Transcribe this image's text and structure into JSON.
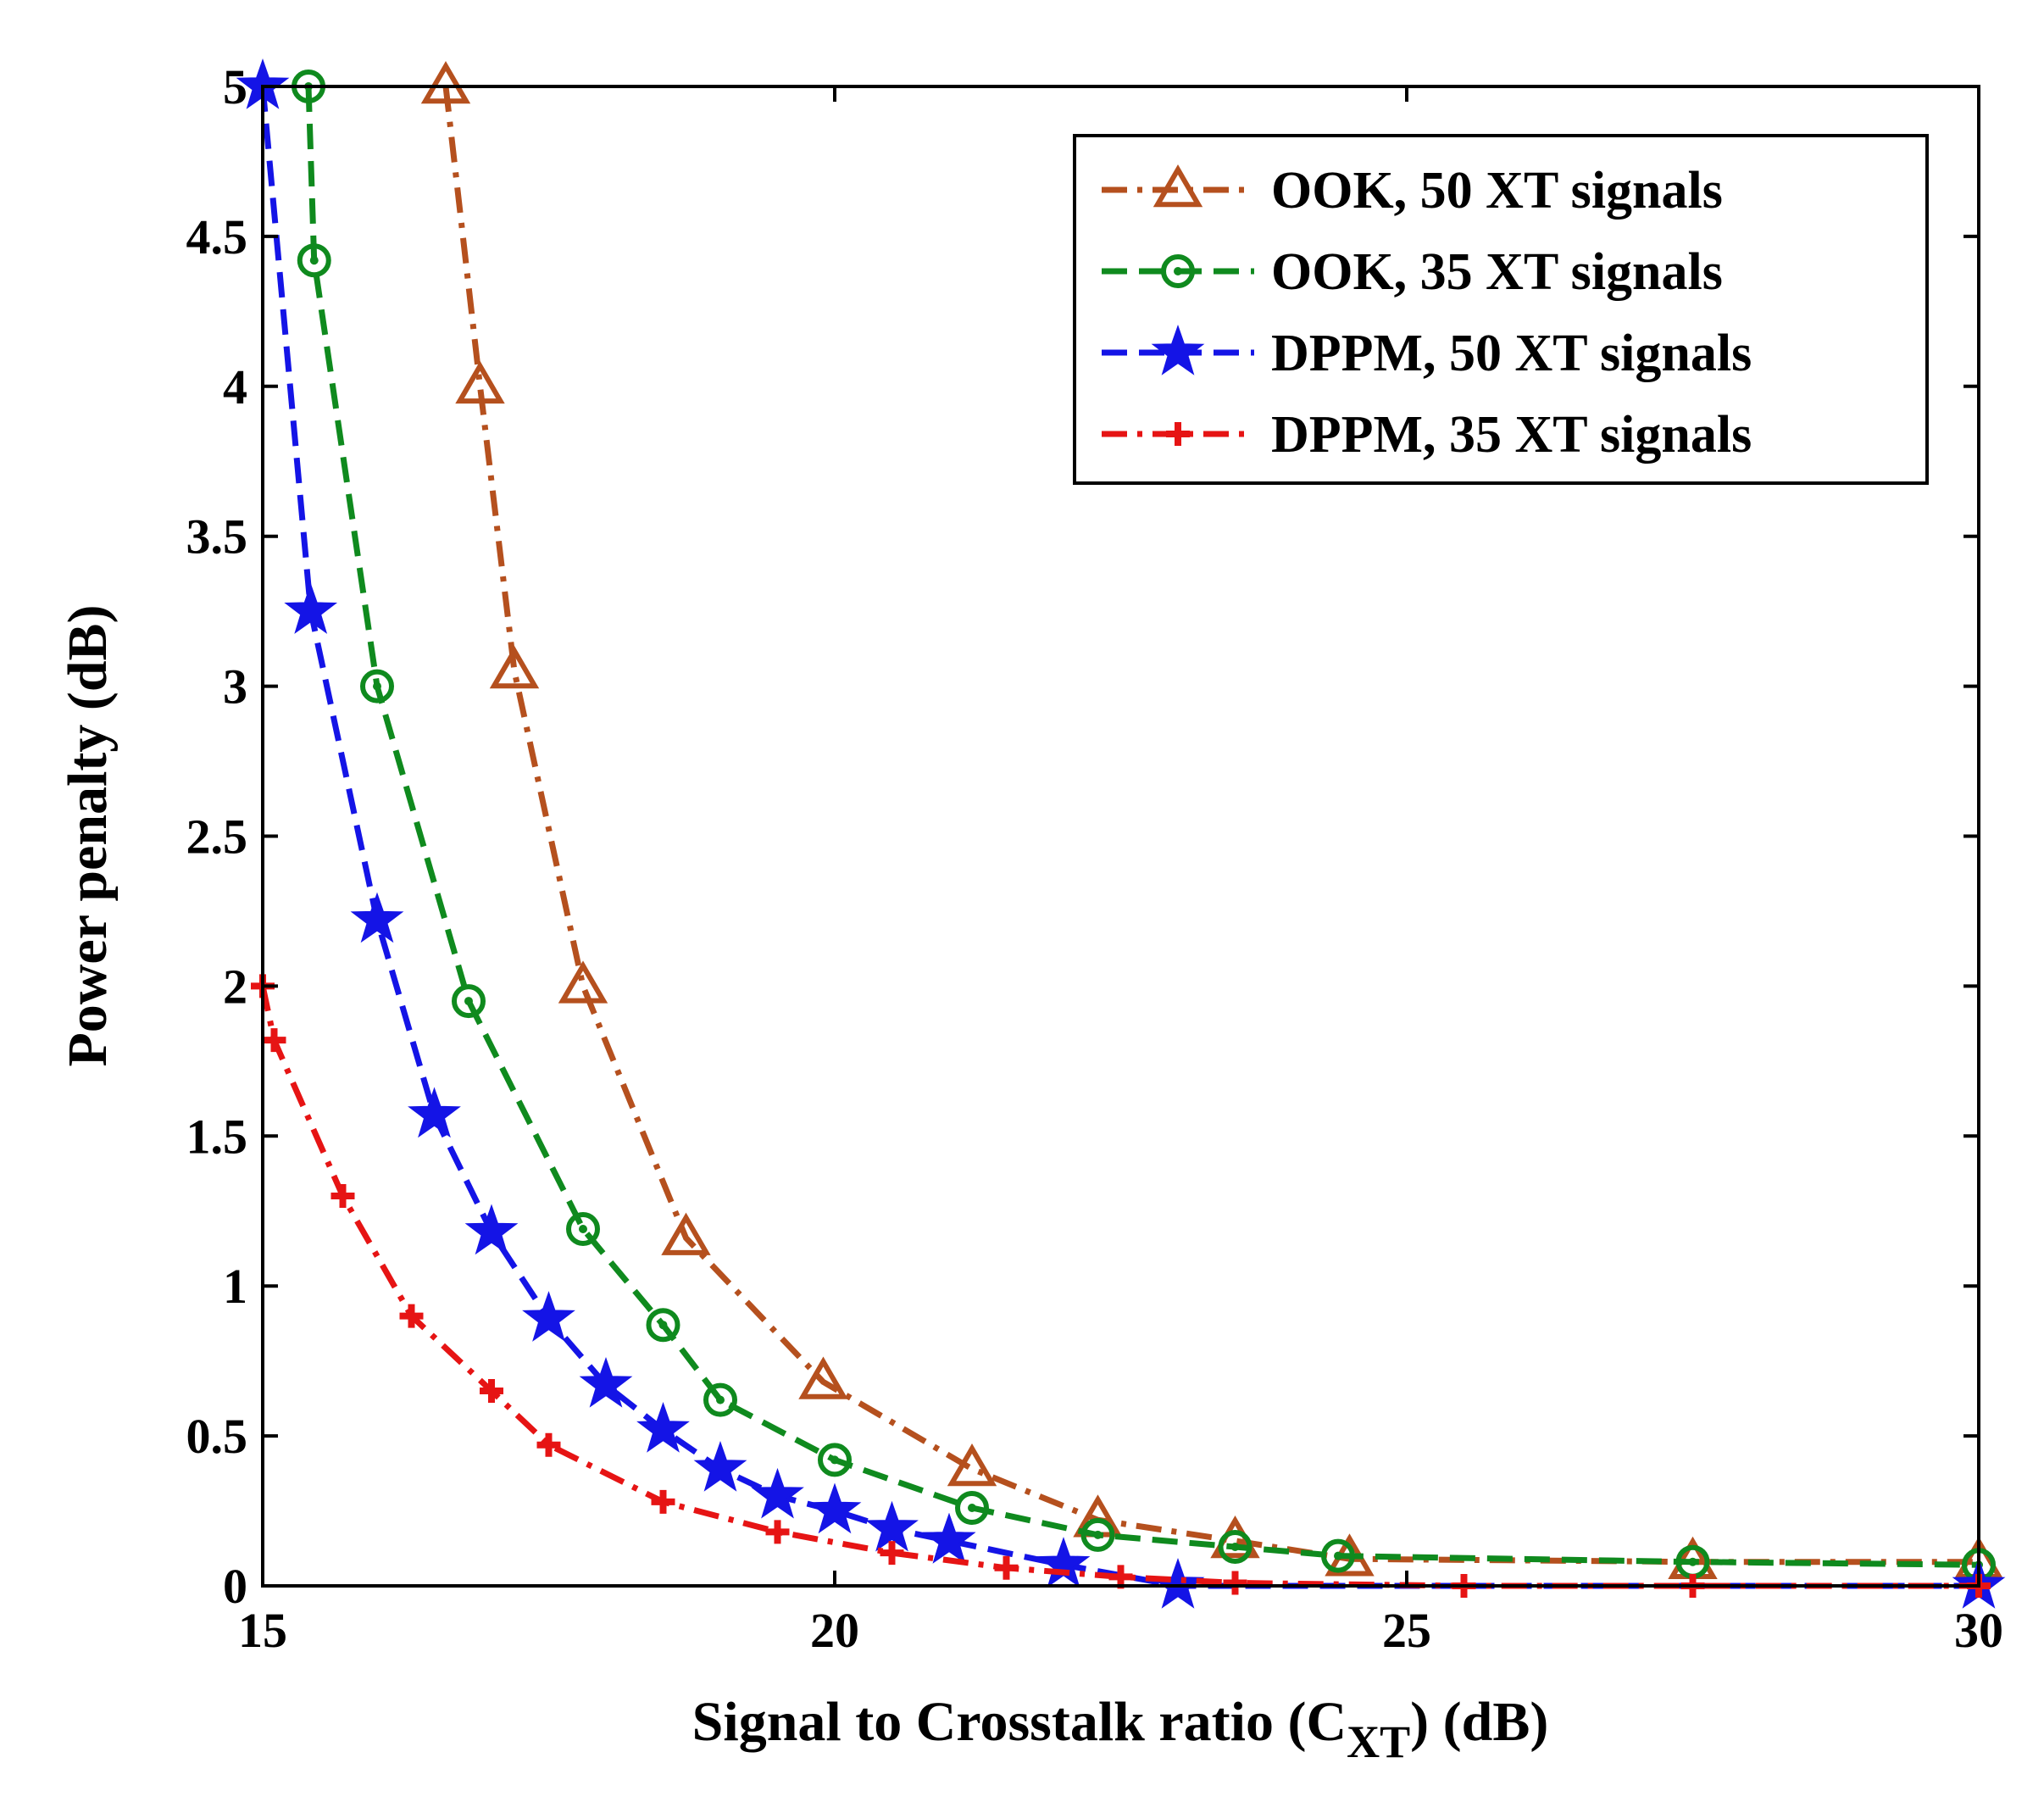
{
  "chart_data": {
    "type": "line",
    "title": "",
    "xlabel": {
      "prefix": "Signal to Crosstalk ratio (C",
      "subscript": "XT",
      "suffix": ") (dB)"
    },
    "ylabel": "Power penalty (dB)",
    "xlim": [
      15,
      30
    ],
    "ylim": [
      0,
      5
    ],
    "xticks": [
      15,
      20,
      25,
      30
    ],
    "xtick_labels": [
      "15",
      "20",
      "25",
      "30"
    ],
    "yticks": [
      0,
      0.5,
      1,
      1.5,
      2,
      2.5,
      3,
      3.5,
      4,
      4.5,
      5
    ],
    "ytick_labels": [
      "0",
      "0.5",
      "1",
      "1.5",
      "2",
      "2.5",
      "3",
      "3.5",
      "4",
      "4.5",
      "5"
    ],
    "grid": false,
    "legend_position": "top-right",
    "series": [
      {
        "name": "OOK, 50 XT signals",
        "color": "#b5501e",
        "marker": "triangle",
        "line_style": "dash-dot",
        "x": [
          16.6,
          16.9,
          17.2,
          17.8,
          18.7,
          19.9,
          21.2,
          22.3,
          23.5,
          24.5,
          27.5,
          30.0
        ],
        "y": [
          5.0,
          4.0,
          3.05,
          2.0,
          1.16,
          0.68,
          0.39,
          0.22,
          0.15,
          0.09,
          0.08,
          0.08
        ]
      },
      {
        "name": "OOK, 35 XT signals",
        "color": "#0f8a1e",
        "marker": "circle",
        "line_style": "dashed",
        "x": [
          15.4,
          15.45,
          16.0,
          16.8,
          17.8,
          18.5,
          19.0,
          20.0,
          21.2,
          22.3,
          23.5,
          24.4,
          27.5,
          30.0
        ],
        "y": [
          5.0,
          4.42,
          3.0,
          1.95,
          1.19,
          0.87,
          0.62,
          0.42,
          0.26,
          0.17,
          0.13,
          0.1,
          0.08,
          0.07
        ]
      },
      {
        "name": "DPPM, 50 XT signals",
        "color": "#1414e6",
        "marker": "star",
        "line_style": "dashed",
        "x": [
          15.0,
          15.42,
          16.0,
          16.5,
          17.0,
          17.5,
          18.0,
          18.5,
          19.0,
          19.5,
          20.0,
          20.5,
          21.0,
          21.0,
          22.0,
          23.0,
          30.0
        ],
        "y": [
          5.0,
          3.25,
          2.22,
          1.57,
          1.18,
          0.89,
          0.67,
          0.52,
          0.39,
          0.3,
          0.25,
          0.19,
          0.15,
          0.15,
          0.07,
          0.0,
          0.0
        ]
      },
      {
        "name": "DPPM, 35 XT signals",
        "color": "#e61414",
        "marker": "plus",
        "line_style": "dash-dot",
        "x": [
          15.0,
          15.1,
          15.7,
          16.3,
          17.0,
          17.5,
          18.5,
          19.5,
          20.5,
          21.5,
          22.5,
          23.5,
          25.5,
          27.5,
          30.0
        ],
        "y": [
          2.0,
          1.82,
          1.3,
          0.9,
          0.65,
          0.47,
          0.28,
          0.18,
          0.11,
          0.06,
          0.03,
          0.01,
          0.0,
          0.0,
          0.0
        ]
      }
    ]
  }
}
